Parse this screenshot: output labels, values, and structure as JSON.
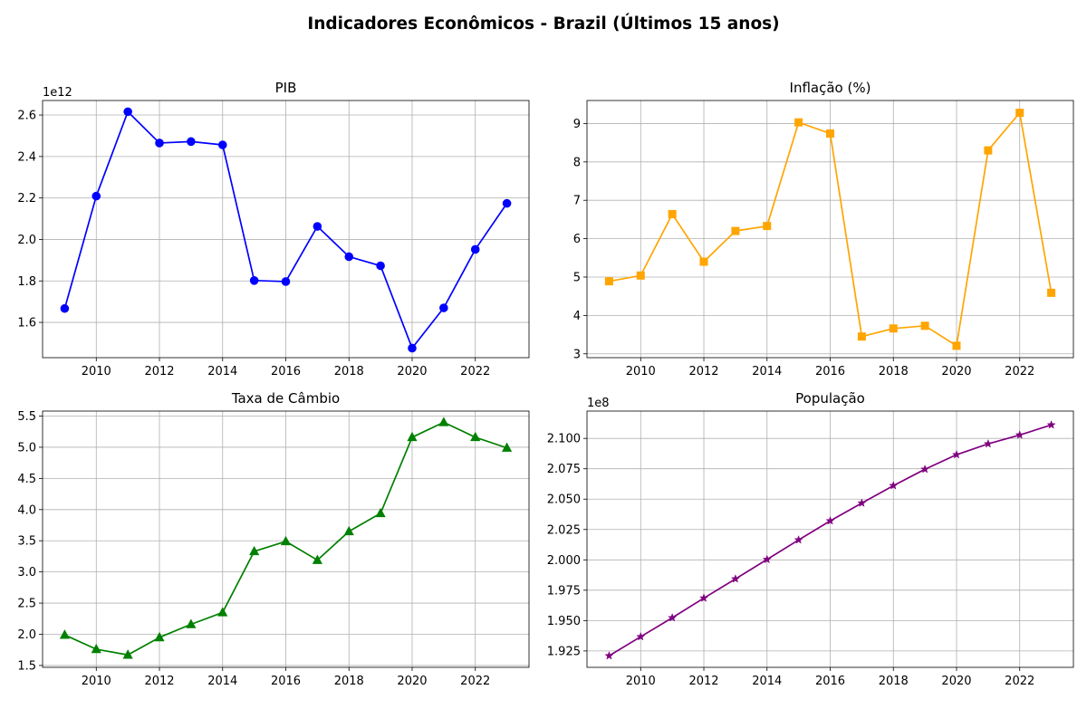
{
  "figure": {
    "title": "Indicadores Econômicos - Brazil (Últimos 15 anos)"
  },
  "chart_data": [
    {
      "id": "pib",
      "type": "line",
      "title": "PIB",
      "xlabel": "",
      "ylabel": "",
      "offset_label": "1e12",
      "color": "#0000ff",
      "marker": "circle",
      "grid": true,
      "xlim": [
        2008.3,
        2023.7
      ],
      "ylim": [
        1.43,
        2.67
      ],
      "xticks": [
        2010,
        2012,
        2014,
        2016,
        2018,
        2020,
        2022
      ],
      "yticks": [
        1.6,
        1.8,
        2.0,
        2.2,
        2.4,
        2.6
      ],
      "ytick_labels": [
        "1.6",
        "1.8",
        "2.0",
        "2.2",
        "2.4",
        "2.6"
      ],
      "x": [
        2009,
        2010,
        2011,
        2012,
        2013,
        2014,
        2015,
        2016,
        2017,
        2018,
        2019,
        2020,
        2021,
        2022,
        2023
      ],
      "y": [
        1.667,
        2.209,
        2.616,
        2.465,
        2.472,
        2.456,
        1.802,
        1.797,
        2.063,
        1.917,
        1.873,
        1.476,
        1.67,
        1.952,
        2.174
      ]
    },
    {
      "id": "inflacao",
      "type": "line",
      "title": "Inflação (%)",
      "xlabel": "",
      "ylabel": "",
      "offset_label": "",
      "color": "#ffa500",
      "marker": "square",
      "grid": true,
      "xlim": [
        2008.3,
        2023.7
      ],
      "ylim": [
        2.9,
        9.6
      ],
      "xticks": [
        2010,
        2012,
        2014,
        2016,
        2018,
        2020,
        2022
      ],
      "yticks": [
        3,
        4,
        5,
        6,
        7,
        8,
        9
      ],
      "ytick_labels": [
        "3",
        "4",
        "5",
        "6",
        "7",
        "8",
        "9"
      ],
      "x": [
        2009,
        2010,
        2011,
        2012,
        2013,
        2014,
        2015,
        2016,
        2017,
        2018,
        2019,
        2020,
        2021,
        2022,
        2023
      ],
      "y": [
        4.89,
        5.04,
        6.64,
        5.4,
        6.2,
        6.33,
        9.03,
        8.74,
        3.45,
        3.66,
        3.73,
        3.21,
        8.3,
        9.28,
        4.59
      ]
    },
    {
      "id": "cambio",
      "type": "line",
      "title": "Taxa de Câmbio",
      "xlabel": "",
      "ylabel": "",
      "offset_label": "",
      "color": "#008000",
      "marker": "triangle",
      "grid": true,
      "xlim": [
        2008.3,
        2023.7
      ],
      "ylim": [
        1.47,
        5.58
      ],
      "xticks": [
        2010,
        2012,
        2014,
        2016,
        2018,
        2020,
        2022
      ],
      "yticks": [
        1.5,
        2.0,
        2.5,
        3.0,
        3.5,
        4.0,
        4.5,
        5.0,
        5.5
      ],
      "ytick_labels": [
        "1.5",
        "2.0",
        "2.5",
        "3.0",
        "3.5",
        "4.0",
        "4.5",
        "5.0",
        "5.5"
      ],
      "x": [
        2009,
        2010,
        2011,
        2012,
        2013,
        2014,
        2015,
        2016,
        2017,
        2018,
        2019,
        2020,
        2021,
        2022,
        2023
      ],
      "y": [
        1.99,
        1.76,
        1.67,
        1.95,
        2.16,
        2.35,
        3.33,
        3.49,
        3.19,
        3.65,
        3.94,
        5.16,
        5.4,
        5.16,
        4.99
      ]
    },
    {
      "id": "populacao",
      "type": "line",
      "title": "População",
      "xlabel": "",
      "ylabel": "",
      "offset_label": "1e8",
      "color": "#800080",
      "marker": "star",
      "grid": true,
      "xlim": [
        2008.3,
        2023.7
      ],
      "ylim": [
        1.9115,
        2.1225
      ],
      "xticks": [
        2010,
        2012,
        2014,
        2016,
        2018,
        2020,
        2022
      ],
      "yticks": [
        1.925,
        1.95,
        1.975,
        2.0,
        2.025,
        2.05,
        2.075,
        2.1
      ],
      "ytick_labels": [
        "1.925",
        "1.950",
        "1.975",
        "2.000",
        "2.025",
        "2.050",
        "2.075",
        "2.100"
      ],
      "x": [
        2009,
        2010,
        2011,
        2012,
        2013,
        2014,
        2015,
        2016,
        2017,
        2018,
        2019,
        2020,
        2021,
        2022,
        2023
      ],
      "y": [
        1.921,
        1.9367,
        1.9523,
        1.9685,
        1.9843,
        2.0003,
        2.0164,
        2.0321,
        2.0467,
        2.0611,
        2.0746,
        2.0866,
        2.0955,
        2.1028,
        2.1111
      ]
    }
  ]
}
